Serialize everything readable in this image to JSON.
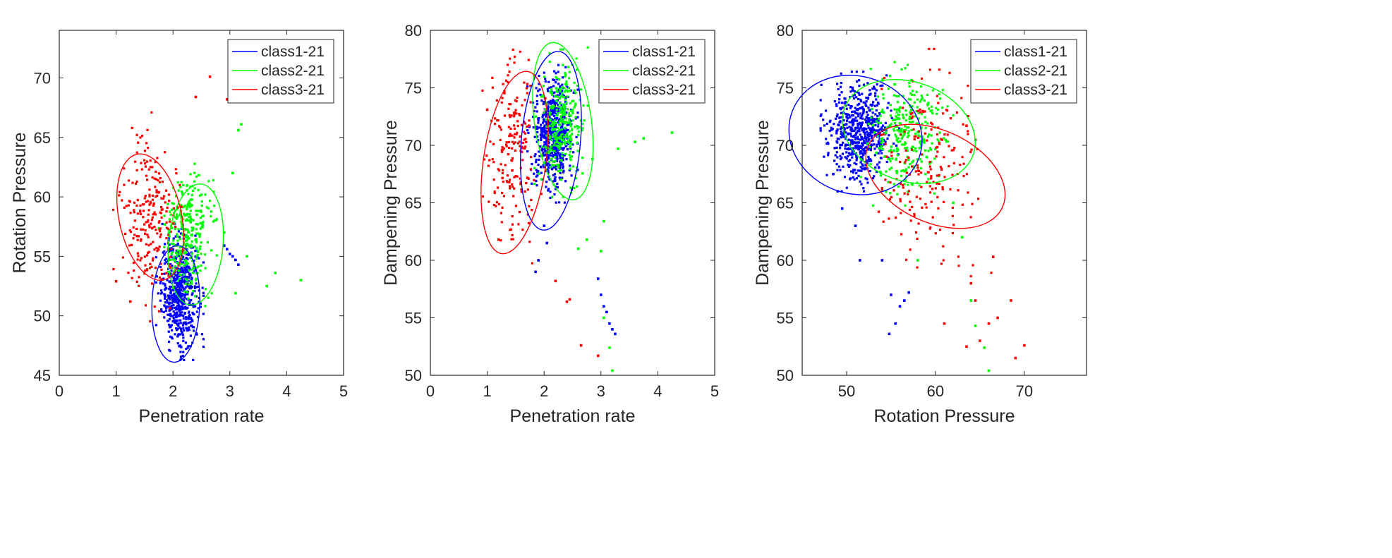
{
  "chart_data": [
    {
      "type": "scatter",
      "title": "",
      "xlabel": "Penetration rate",
      "ylabel": "Rotation Pressure",
      "xlim": [
        0,
        5
      ],
      "ylim": [
        45,
        74
      ],
      "xticks": [
        0,
        1,
        2,
        3,
        4,
        5
      ],
      "xtick_labels": [
        "0",
        "1",
        "2",
        "3",
        "4",
        "5"
      ],
      "yticks": [
        45,
        50,
        55,
        60,
        65,
        70
      ],
      "ytick_labels": [
        "45",
        "50",
        "55",
        "60",
        "65",
        "70"
      ],
      "legend_position": "top-right",
      "series": [
        {
          "name": "class1-21",
          "color": "#0000ff",
          "cluster": {
            "cx": 2.12,
            "cy": 52.0,
            "sx": 0.16,
            "sy": 2.2,
            "n": 600
          },
          "outliers": [
            [
              2.9,
              55.9
            ],
            [
              2.95,
              55.6
            ],
            [
              3.0,
              55.2
            ],
            [
              3.05,
              55.0
            ],
            [
              3.1,
              54.7
            ],
            [
              3.15,
              54.3
            ]
          ],
          "ellipse": {
            "cx": 2.05,
            "cy": 51.0,
            "a": 4.9,
            "b": 0.42,
            "angle_deg": 2
          }
        },
        {
          "name": "class2-21",
          "color": "#00ff00",
          "cluster": {
            "cx": 2.25,
            "cy": 56.8,
            "sx": 0.2,
            "sy": 2.3,
            "n": 320
          },
          "outliers": [
            [
              3.15,
              65.6
            ],
            [
              3.2,
              66.1
            ],
            [
              3.05,
              62.0
            ],
            [
              3.3,
              55.0
            ],
            [
              3.8,
              53.6
            ],
            [
              3.65,
              52.5
            ],
            [
              4.25,
              53.0
            ],
            [
              3.1,
              51.9
            ],
            [
              2.9,
              57.0
            ]
          ],
          "ellipse": {
            "cx": 2.4,
            "cy": 56.0,
            "a": 5.1,
            "b": 0.48,
            "angle_deg": 5
          }
        },
        {
          "name": "class3-21",
          "color": "#ff0000",
          "cluster": {
            "cx": 1.6,
            "cy": 58.0,
            "sx": 0.25,
            "sy": 3.5,
            "n": 230
          },
          "outliers": [
            [
              2.65,
              70.1
            ],
            [
              2.95,
              68.2
            ],
            [
              2.4,
              68.4
            ],
            [
              1.0,
              52.9
            ],
            [
              1.25,
              51.2
            ]
          ],
          "ellipse": {
            "cx": 1.6,
            "cy": 58.3,
            "a": 5.4,
            "b": 0.55,
            "angle_deg": -12
          }
        }
      ]
    },
    {
      "type": "scatter",
      "title": "",
      "xlabel": "Penetration rate",
      "ylabel": "Dampening Pressure",
      "xlim": [
        0,
        5
      ],
      "ylim": [
        50,
        80
      ],
      "xticks": [
        0,
        1,
        2,
        3,
        4,
        5
      ],
      "xtick_labels": [
        "0",
        "1",
        "2",
        "3",
        "4",
        "5"
      ],
      "yticks": [
        50,
        55,
        60,
        65,
        70,
        75,
        80
      ],
      "ytick_labels": [
        "50",
        "55",
        "60",
        "65",
        "70",
        "75",
        "80"
      ],
      "legend_position": "top-right",
      "series": [
        {
          "name": "class1-21",
          "color": "#0000ff",
          "cluster": {
            "cx": 2.15,
            "cy": 71.0,
            "sx": 0.17,
            "sy": 2.3,
            "n": 600
          },
          "outliers": [
            [
              1.85,
              59.0
            ],
            [
              1.9,
              60.0
            ],
            [
              2.95,
              58.4
            ],
            [
              3.0,
              57.0
            ],
            [
              3.05,
              56.0
            ],
            [
              3.1,
              55.5
            ],
            [
              3.15,
              54.5
            ],
            [
              3.2,
              54.0
            ],
            [
              3.25,
              53.6
            ],
            [
              2.05,
              61.5
            ],
            [
              2.0,
              63.0
            ]
          ],
          "ellipse": {
            "cx": 2.12,
            "cy": 70.4,
            "a": 7.8,
            "b": 0.52,
            "angle_deg": 5
          }
        },
        {
          "name": "class2-21",
          "color": "#00ff00",
          "cluster": {
            "cx": 2.3,
            "cy": 72.0,
            "sx": 0.18,
            "sy": 2.5,
            "n": 300
          },
          "outliers": [
            [
              3.3,
              69.7
            ],
            [
              3.6,
              70.3
            ],
            [
              3.75,
              70.6
            ],
            [
              4.25,
              71.1
            ],
            [
              2.85,
              68.8
            ],
            [
              3.05,
              63.4
            ],
            [
              3.0,
              60.8
            ],
            [
              3.05,
              55.0
            ],
            [
              3.15,
              52.4
            ],
            [
              3.2,
              50.4
            ],
            [
              2.6,
              61.0
            ],
            [
              2.75,
              61.8
            ]
          ],
          "ellipse": {
            "cx": 2.33,
            "cy": 72.1,
            "a": 6.9,
            "b": 0.5,
            "angle_deg": -8
          }
        },
        {
          "name": "class3-21",
          "color": "#ff0000",
          "cluster": {
            "cx": 1.45,
            "cy": 69.5,
            "sx": 0.22,
            "sy": 3.8,
            "n": 200
          },
          "outliers": [
            [
              1.0,
              73.1
            ],
            [
              1.2,
              61.8
            ],
            [
              2.45,
              56.6
            ],
            [
              2.4,
              56.4
            ],
            [
              2.2,
              58.2
            ],
            [
              2.65,
              52.6
            ],
            [
              2.95,
              51.7
            ]
          ],
          "ellipse": {
            "cx": 1.48,
            "cy": 68.5,
            "a": 8.0,
            "b": 0.55,
            "angle_deg": 8
          }
        }
      ]
    },
    {
      "type": "scatter",
      "title": "",
      "xlabel": "Rotation Pressure",
      "ylabel": "Dampening Pressure",
      "xlim": [
        45,
        77
      ],
      "ylim": [
        50,
        80
      ],
      "xticks": [
        50,
        60,
        70
      ],
      "xtick_labels": [
        "50",
        "60",
        "70"
      ],
      "yticks": [
        50,
        55,
        60,
        65,
        70,
        75,
        80
      ],
      "ytick_labels": [
        "50",
        "55",
        "60",
        "65",
        "70",
        "75",
        "80"
      ],
      "legend_position": "top-right",
      "series": [
        {
          "name": "class1-21",
          "color": "#0000ff",
          "cluster": {
            "cx": 51.5,
            "cy": 71.2,
            "sx": 1.7,
            "sy": 2.0,
            "n": 600
          },
          "outliers": [
            [
              48.5,
              67.5
            ],
            [
              49.0,
              66.0
            ],
            [
              49.5,
              64.5
            ],
            [
              51.0,
              63.0
            ],
            [
              51.5,
              60.0
            ],
            [
              54.0,
              60.0
            ],
            [
              55.0,
              57.0
            ],
            [
              56.0,
              56.0
            ],
            [
              55.5,
              54.5
            ],
            [
              54.8,
              53.6
            ],
            [
              57.0,
              57.2
            ],
            [
              56.5,
              56.5
            ]
          ],
          "ellipse": {
            "cx": 51.0,
            "cy": 70.9,
            "a": 5.1,
            "b": 7.6,
            "angle_deg": 20
          }
        },
        {
          "name": "class2-21",
          "color": "#00ff00",
          "cluster": {
            "cx": 56.8,
            "cy": 71.0,
            "sx": 2.0,
            "sy": 2.4,
            "n": 320
          },
          "outliers": [
            [
              62.0,
              65.0
            ],
            [
              63.0,
              62.0
            ],
            [
              64.0,
              56.5
            ],
            [
              64.5,
              54.3
            ],
            [
              65.5,
              52.4
            ],
            [
              66.0,
              50.4
            ],
            [
              58.0,
              60.0
            ]
          ],
          "ellipse": {
            "cx": 57.0,
            "cy": 71.2,
            "a": 4.3,
            "b": 7.7,
            "angle_deg": 20
          }
        },
        {
          "name": "class3-21",
          "color": "#ff0000",
          "cluster": {
            "cx": 59.0,
            "cy": 68.5,
            "sx": 2.8,
            "sy": 3.8,
            "n": 190
          },
          "outliers": [
            [
              63.5,
              71.7
            ],
            [
              64.5,
              56.5
            ],
            [
              65.0,
              53.0
            ],
            [
              66.0,
              54.5
            ],
            [
              67.0,
              55.0
            ],
            [
              68.5,
              56.5
            ],
            [
              69.0,
              51.5
            ],
            [
              70.0,
              52.6
            ],
            [
              66.5,
              60.3
            ],
            [
              64.0,
              58.0
            ],
            [
              63.5,
              52.5
            ],
            [
              61.0,
              54.5
            ]
          ],
          "ellipse": {
            "cx": 60.0,
            "cy": 67.3,
            "a": 4.0,
            "b": 8.3,
            "angle_deg": 25
          }
        }
      ]
    }
  ]
}
